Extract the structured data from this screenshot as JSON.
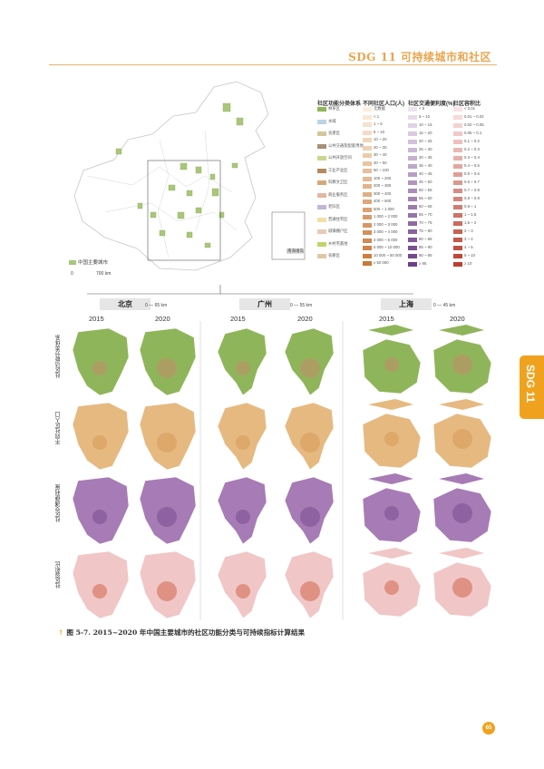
{
  "header": {
    "title": "SDG 11 可持续城市和社区",
    "accent": "#e8a64f"
  },
  "side_tab": {
    "label": "SDG 11",
    "color": "#f0a21e"
  },
  "figure": {
    "map_legend": "中国主要城市",
    "map_scale": [
      "0",
      "700 km"
    ],
    "inset_label": "南海诸岛",
    "legend_headers": [
      "社区功能分类体系",
      "不同社区人口(人)",
      "社区交通便利度(%)",
      "社区容积比"
    ],
    "function_classes": [
      "林草区",
      "水域",
      "农建区",
      "公共交通及配套用地",
      "公共开放空间",
      "工业产业区",
      "科教文卫区",
      "商业服务区",
      "老旧区",
      "普通住宅区",
      "城镇棚户区",
      "乡村宅基地",
      "农耕区"
    ],
    "population_classes": [
      "无数据",
      "< 1",
      "1 ~ 5",
      "5 ~ 10",
      "10 ~ 20",
      "20 ~ 30",
      "30 ~ 40",
      "40 ~ 50",
      "50 ~ 100",
      "100 ~ 200",
      "200 ~ 300",
      "300 ~ 400",
      "400 ~ 500",
      "500 ~ 1 000",
      "1 000 ~ 2 000",
      "2 000 ~ 3 000",
      "3 000 ~ 4 000",
      "4 000 ~ 5 000",
      "5 000 ~ 10 000",
      "10 000 ~ 50 000",
      "≥ 50 000"
    ],
    "transport_classes": [
      "< 5",
      "5 ~ 10",
      "10 ~ 15",
      "15 ~ 20",
      "20 ~ 25",
      "25 ~ 30",
      "30 ~ 35",
      "35 ~ 40",
      "40 ~ 45",
      "45 ~ 50",
      "50 ~ 55",
      "55 ~ 60",
      "60 ~ 65",
      "65 ~ 70",
      "70 ~ 75",
      "75 ~ 80",
      "80 ~ 85",
      "85 ~ 90",
      "90 ~ 95",
      "≥ 95"
    ],
    "far_classes": [
      "< 0.01",
      "0.01 ~ 0.02",
      "0.02 ~ 0.05",
      "0.05 ~ 0.1",
      "0.1 ~ 0.2",
      "0.2 ~ 0.3",
      "0.3 ~ 0.4",
      "0.4 ~ 0.5",
      "0.5 ~ 0.6",
      "0.6 ~ 0.7",
      "0.7 ~ 0.8",
      "0.8 ~ 0.9",
      "0.9 ~ 1",
      "1 ~ 1.5",
      "1.5 ~ 2",
      "2 ~ 3",
      "3 ~ 4",
      "4 ~ 5",
      "5 ~ 10",
      "≥ 10"
    ],
    "cities": [
      {
        "name": "北京",
        "scale": [
          "0",
          "65 km"
        ]
      },
      {
        "name": "广州",
        "scale": [
          "0",
          "55 km"
        ]
      },
      {
        "name": "上海",
        "scale": [
          "0",
          "45 km"
        ]
      }
    ],
    "years": [
      "2015",
      "2020"
    ],
    "row_labels": [
      "社区功能分类体系",
      "不同社区人口",
      "社区交通便利度",
      "社区容积比"
    ],
    "row_colors": [
      "#8fb55a",
      "#e6b980",
      "#a77bb5",
      "#f1c6c6"
    ],
    "row_accents": [
      "#c58a6a",
      "#d69a55",
      "#7a4d8f",
      "#d0684f"
    ]
  },
  "caption": "图 5-7. 2015~2020 年中国主要城市的社区功能分类与可持续指标计算结果",
  "page_number": "65"
}
